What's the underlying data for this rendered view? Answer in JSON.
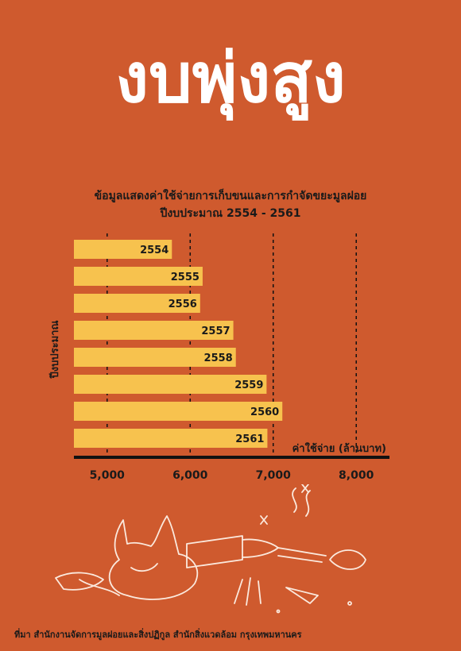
{
  "header": {
    "title": "งบพุ่งสูง",
    "subtitle_line1": "ข้อมูลแสดงค่าใช้จ่ายการเก็บขนและการกำจัดขยะมูลฝอย",
    "subtitle_line2": "ปีงบประมาณ 2554 - 2561"
  },
  "footer": {
    "source": "ที่มา สำนักงานจัดการมูลฝอยและสิ่งปฏิกูล สำนักสิ่งแวดล้อม กรุงเทพมหานคร"
  },
  "colors": {
    "background": "#cf5a2e",
    "bar": "#f7c24e",
    "text": "#1a1a1a",
    "title": "#ffffff"
  },
  "chart_data": {
    "type": "bar",
    "orientation": "horizontal",
    "categories": [
      "2554",
      "2555",
      "2556",
      "2557",
      "2558",
      "2559",
      "2560",
      "2561"
    ],
    "values": [
      5780,
      6150,
      6120,
      6520,
      6550,
      6920,
      7110,
      6930
    ],
    "xlabel": "ค่าใช้จ่าย (ล้านบาท)",
    "ylabel": "ปีงบประมาณ",
    "xlim": [
      4600,
      8400
    ],
    "xticks": [
      5000,
      6000,
      7000,
      8000
    ],
    "xtick_labels": [
      "5,000",
      "6,000",
      "7,000",
      "8,000"
    ],
    "grid": "vertical dashed",
    "data_labels": "category inside bar end"
  }
}
